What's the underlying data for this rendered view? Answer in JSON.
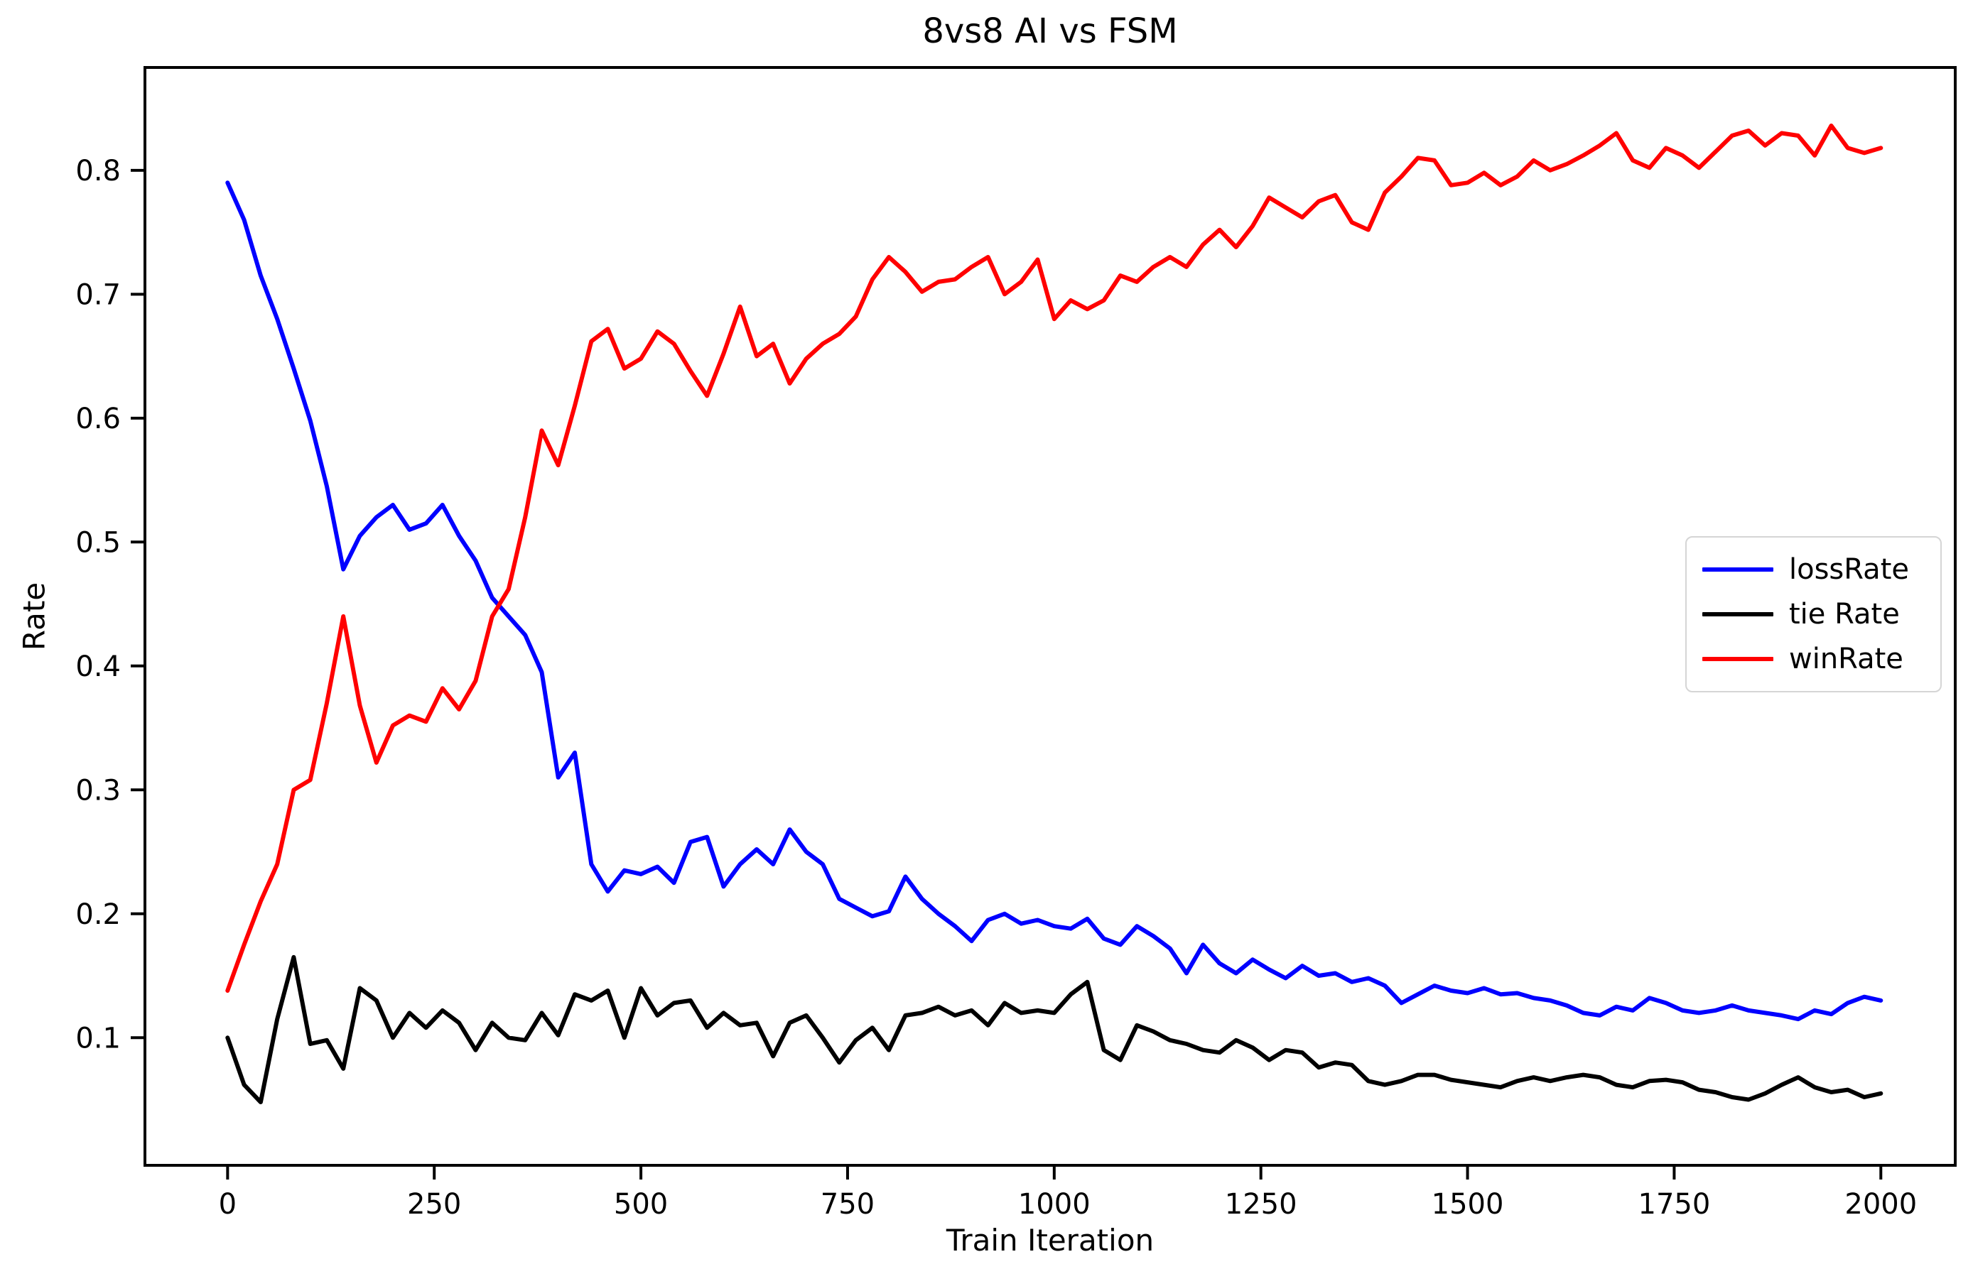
{
  "title": "8vs8 AI vs FSM",
  "axes": {
    "xlabel": "Train Iteration",
    "ylabel": "Rate",
    "xlim": [
      -100,
      2090
    ],
    "ylim": [
      -0.003,
      0.883
    ],
    "xticks": [
      {
        "value": 0,
        "label": "0"
      },
      {
        "value": 250,
        "label": "250"
      },
      {
        "value": 500,
        "label": "500"
      },
      {
        "value": 750,
        "label": "750"
      },
      {
        "value": 1000,
        "label": "1000"
      },
      {
        "value": 1250,
        "label": "1250"
      },
      {
        "value": 1500,
        "label": "1500"
      },
      {
        "value": 1750,
        "label": "1750"
      },
      {
        "value": 2000,
        "label": "2000"
      }
    ],
    "yticks": [
      {
        "value": 0.1,
        "label": "0.1"
      },
      {
        "value": 0.2,
        "label": "0.2"
      },
      {
        "value": 0.3,
        "label": "0.3"
      },
      {
        "value": 0.4,
        "label": "0.4"
      },
      {
        "value": 0.5,
        "label": "0.5"
      },
      {
        "value": 0.6,
        "label": "0.6"
      },
      {
        "value": 0.7,
        "label": "0.7"
      },
      {
        "value": 0.8,
        "label": "0.8"
      }
    ]
  },
  "legend": {
    "entries": [
      {
        "label": "lossRate",
        "color": "#0000ff"
      },
      {
        "label": "tie Rate",
        "color": "#000000"
      },
      {
        "label": "winRate",
        "color": "#ff0000"
      }
    ]
  },
  "chart_data": {
    "type": "line",
    "title": "8vs8 AI vs FSM",
    "xlabel": "Train Iteration",
    "ylabel": "Rate",
    "xlim": [
      -100,
      2090
    ],
    "ylim": [
      -0.003,
      0.883
    ],
    "grid": false,
    "legend_position": "center right",
    "x": [
      0,
      20,
      40,
      60,
      80,
      100,
      120,
      140,
      160,
      180,
      200,
      220,
      240,
      260,
      280,
      300,
      320,
      340,
      360,
      380,
      400,
      420,
      440,
      460,
      480,
      500,
      520,
      540,
      560,
      580,
      600,
      620,
      640,
      660,
      680,
      700,
      720,
      740,
      760,
      780,
      800,
      820,
      840,
      860,
      880,
      900,
      920,
      940,
      960,
      980,
      1000,
      1020,
      1040,
      1060,
      1080,
      1100,
      1120,
      1140,
      1160,
      1180,
      1200,
      1220,
      1240,
      1260,
      1280,
      1300,
      1320,
      1340,
      1360,
      1380,
      1400,
      1420,
      1440,
      1460,
      1480,
      1500,
      1520,
      1540,
      1560,
      1580,
      1600,
      1620,
      1640,
      1660,
      1680,
      1700,
      1720,
      1740,
      1760,
      1780,
      1800,
      1820,
      1840,
      1860,
      1880,
      1900,
      1920,
      1940,
      1960,
      1980,
      2000
    ],
    "series": [
      {
        "name": "lossRate",
        "color": "#0000ff",
        "values": [
          0.79,
          0.76,
          0.715,
          0.68,
          0.64,
          0.598,
          0.545,
          0.478,
          0.505,
          0.52,
          0.53,
          0.51,
          0.515,
          0.53,
          0.505,
          0.485,
          0.455,
          0.44,
          0.425,
          0.395,
          0.31,
          0.33,
          0.24,
          0.218,
          0.235,
          0.232,
          0.238,
          0.225,
          0.258,
          0.262,
          0.222,
          0.24,
          0.252,
          0.24,
          0.268,
          0.25,
          0.24,
          0.212,
          0.205,
          0.198,
          0.202,
          0.23,
          0.212,
          0.2,
          0.19,
          0.178,
          0.195,
          0.2,
          0.192,
          0.195,
          0.19,
          0.188,
          0.196,
          0.18,
          0.175,
          0.19,
          0.182,
          0.172,
          0.152,
          0.175,
          0.16,
          0.152,
          0.163,
          0.155,
          0.148,
          0.158,
          0.15,
          0.152,
          0.145,
          0.148,
          0.142,
          0.128,
          0.135,
          0.142,
          0.138,
          0.136,
          0.14,
          0.135,
          0.136,
          0.132,
          0.13,
          0.126,
          0.12,
          0.118,
          0.125,
          0.122,
          0.132,
          0.128,
          0.122,
          0.12,
          0.122,
          0.126,
          0.122,
          0.12,
          0.118,
          0.115,
          0.122,
          0.119,
          0.128,
          0.133,
          0.13
        ]
      },
      {
        "name": "tie Rate",
        "color": "#000000",
        "values": [
          0.1,
          0.062,
          0.048,
          0.115,
          0.165,
          0.095,
          0.098,
          0.075,
          0.14,
          0.13,
          0.1,
          0.12,
          0.108,
          0.122,
          0.112,
          0.09,
          0.112,
          0.1,
          0.098,
          0.12,
          0.102,
          0.135,
          0.13,
          0.138,
          0.1,
          0.14,
          0.118,
          0.128,
          0.13,
          0.108,
          0.12,
          0.11,
          0.112,
          0.085,
          0.112,
          0.118,
          0.1,
          0.08,
          0.098,
          0.108,
          0.09,
          0.118,
          0.12,
          0.125,
          0.118,
          0.122,
          0.11,
          0.128,
          0.12,
          0.122,
          0.12,
          0.135,
          0.145,
          0.09,
          0.082,
          0.11,
          0.105,
          0.098,
          0.095,
          0.09,
          0.088,
          0.098,
          0.092,
          0.082,
          0.09,
          0.088,
          0.076,
          0.08,
          0.078,
          0.065,
          0.062,
          0.065,
          0.07,
          0.07,
          0.066,
          0.064,
          0.062,
          0.06,
          0.065,
          0.068,
          0.065,
          0.068,
          0.07,
          0.068,
          0.062,
          0.06,
          0.065,
          0.066,
          0.064,
          0.058,
          0.056,
          0.052,
          0.05,
          0.055,
          0.062,
          0.068,
          0.06,
          0.056,
          0.058,
          0.052,
          0.055
        ]
      },
      {
        "name": "winRate",
        "color": "#ff0000",
        "values": [
          0.138,
          0.175,
          0.21,
          0.24,
          0.3,
          0.308,
          0.37,
          0.44,
          0.368,
          0.322,
          0.352,
          0.36,
          0.355,
          0.382,
          0.365,
          0.388,
          0.44,
          0.462,
          0.52,
          0.59,
          0.562,
          0.61,
          0.662,
          0.672,
          0.64,
          0.648,
          0.67,
          0.66,
          0.638,
          0.618,
          0.652,
          0.69,
          0.65,
          0.66,
          0.628,
          0.648,
          0.66,
          0.668,
          0.682,
          0.712,
          0.73,
          0.718,
          0.702,
          0.71,
          0.712,
          0.722,
          0.73,
          0.7,
          0.71,
          0.728,
          0.68,
          0.695,
          0.688,
          0.695,
          0.715,
          0.71,
          0.722,
          0.73,
          0.722,
          0.74,
          0.752,
          0.738,
          0.755,
          0.778,
          0.77,
          0.762,
          0.775,
          0.78,
          0.758,
          0.752,
          0.782,
          0.795,
          0.81,
          0.808,
          0.788,
          0.79,
          0.798,
          0.788,
          0.795,
          0.808,
          0.8,
          0.805,
          0.812,
          0.82,
          0.83,
          0.808,
          0.802,
          0.818,
          0.812,
          0.802,
          0.815,
          0.828,
          0.832,
          0.82,
          0.83,
          0.828,
          0.812,
          0.836,
          0.818,
          0.814,
          0.818
        ]
      }
    ]
  }
}
